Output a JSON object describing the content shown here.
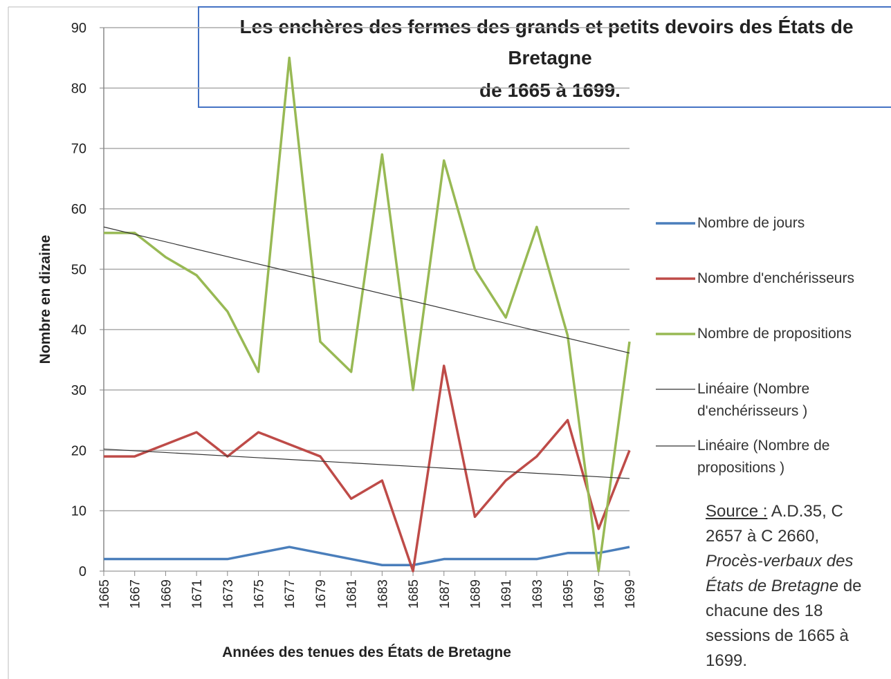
{
  "chart_data": {
    "type": "line",
    "title": [
      "Les enchères des fermes des grands et petits devoirs des États de",
      "Bretagne",
      "de 1665 à 1699."
    ],
    "x_label": "Années des tenues des États de Bretagne",
    "y_label": "Nombre en dizaine",
    "categories": [
      "1665",
      "1667",
      "1669",
      "1671",
      "1673",
      "1675",
      "1677",
      "1679",
      "1681",
      "1683",
      "1685",
      "1687",
      "1689",
      "1691",
      "1693",
      "1695",
      "1697",
      "1699"
    ],
    "series": [
      {
        "name": "Nombre de jours",
        "color": "#4a7ebb",
        "values": [
          2,
          2,
          2,
          2,
          2,
          3,
          4,
          3,
          2,
          1,
          1,
          2,
          2,
          2,
          2,
          3,
          3,
          4
        ]
      },
      {
        "name": "Nombre d'enchérisseurs",
        "color": "#be4b48",
        "values": [
          19,
          19,
          21,
          23,
          19,
          23,
          21,
          19,
          12,
          15,
          0,
          34,
          9,
          15,
          19,
          25,
          7,
          20
        ],
        "trendline": {
          "name": "Linéaire (Nombre d'enchérisseurs )",
          "color": "#333333"
        }
      },
      {
        "name": "Nombre de propositions",
        "color": "#98b954",
        "values": [
          56,
          56,
          52,
          49,
          43,
          33,
          85,
          38,
          33,
          69,
          30,
          68,
          50,
          42,
          57,
          39,
          0,
          38
        ],
        "trendline": {
          "name": "Linéaire (Nombre de propositions )",
          "color": "#333333"
        }
      }
    ],
    "ylim": [
      0,
      90
    ],
    "yticks": [
      0,
      10,
      20,
      30,
      40,
      50,
      60,
      70,
      80,
      90
    ],
    "grid": true,
    "source": {
      "label": "Source :",
      "text": "A.D.35, C 2657 à C 2660,",
      "italic": "Procès-verbaux des États de Bretagne",
      "rest": "de chacune des 18 sessions de 1665 à 1699."
    }
  }
}
